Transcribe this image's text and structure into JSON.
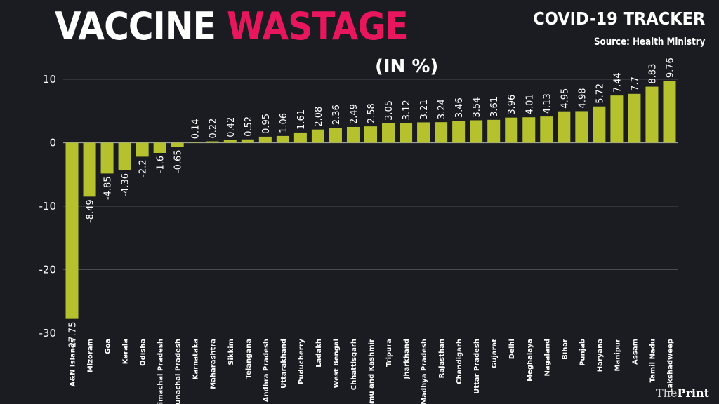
{
  "header": {
    "title_main": "VACCINE",
    "title_accent": "WASTAGE",
    "subtitle": "(IN %)",
    "tracker": "COVID-19 TRACKER",
    "source": "Source: Health Ministry"
  },
  "branding": {
    "logo_the": "The",
    "logo_print": "Print"
  },
  "colors": {
    "bar": "#b5c22d",
    "accent": "#e8175d",
    "background": "#1b1c22",
    "grid": "#5a5c66"
  },
  "chart_data": {
    "type": "bar",
    "title": "VACCINE WASTAGE (IN %)",
    "xlabel": "",
    "ylabel": "",
    "ylim": [
      -30,
      10
    ],
    "yticks": [
      10,
      0,
      -10,
      -20,
      -30
    ],
    "grid": true,
    "categories": [
      "A&N Islands",
      "Mizoram",
      "Goa",
      "Kerala",
      "Odisha",
      "Himachal Pradesh",
      "Arunachal Pradesh",
      "Karnataka",
      "Maharashtra",
      "Sikkim",
      "Telangana",
      "Andhra Pradesh",
      "Uttarakhand",
      "Puducherry",
      "Ladakh",
      "West Bengal",
      "Chhattisgarh",
      "Jammu and Kashmir",
      "Tripura",
      "Jharkhand",
      "Madhya Pradesh",
      "Rajasthan",
      "Chandigarh",
      "Uttar Pradesh",
      "Gujarat",
      "Delhi",
      "Meghalaya",
      "Nagaland",
      "Bihar",
      "Punjab",
      "Haryana",
      "Manipur",
      "Assam",
      "Tamil Nadu",
      "Lakshadweep"
    ],
    "values": [
      -27.75,
      -8.49,
      -4.85,
      -4.36,
      -2.2,
      -1.6,
      -0.65,
      0.14,
      0.22,
      0.42,
      0.52,
      0.95,
      1.06,
      1.61,
      2.08,
      2.36,
      2.49,
      2.58,
      3.05,
      3.12,
      3.21,
      3.24,
      3.46,
      3.54,
      3.61,
      3.96,
      4.01,
      4.13,
      4.95,
      4.98,
      5.72,
      7.44,
      7.7,
      8.83,
      9.76
    ],
    "labels": [
      "-27.75",
      "-8.49",
      "-4.85",
      "-4.36",
      "-2.2",
      "-1.6",
      "-0.65",
      "0.14",
      "0.22",
      "0.42",
      "0.52",
      "0.95",
      "1.06",
      "1.61",
      "2.08",
      "2.36",
      "2.49",
      "2.58",
      "3.05",
      "3.12",
      "3.21",
      "3.24",
      "3.46",
      "3.54",
      "3.61",
      "3.96",
      "4.01",
      "4.13",
      "4.95",
      "4.98",
      "5.72",
      "7.44",
      "7.7",
      "8.83",
      "9.76"
    ]
  }
}
